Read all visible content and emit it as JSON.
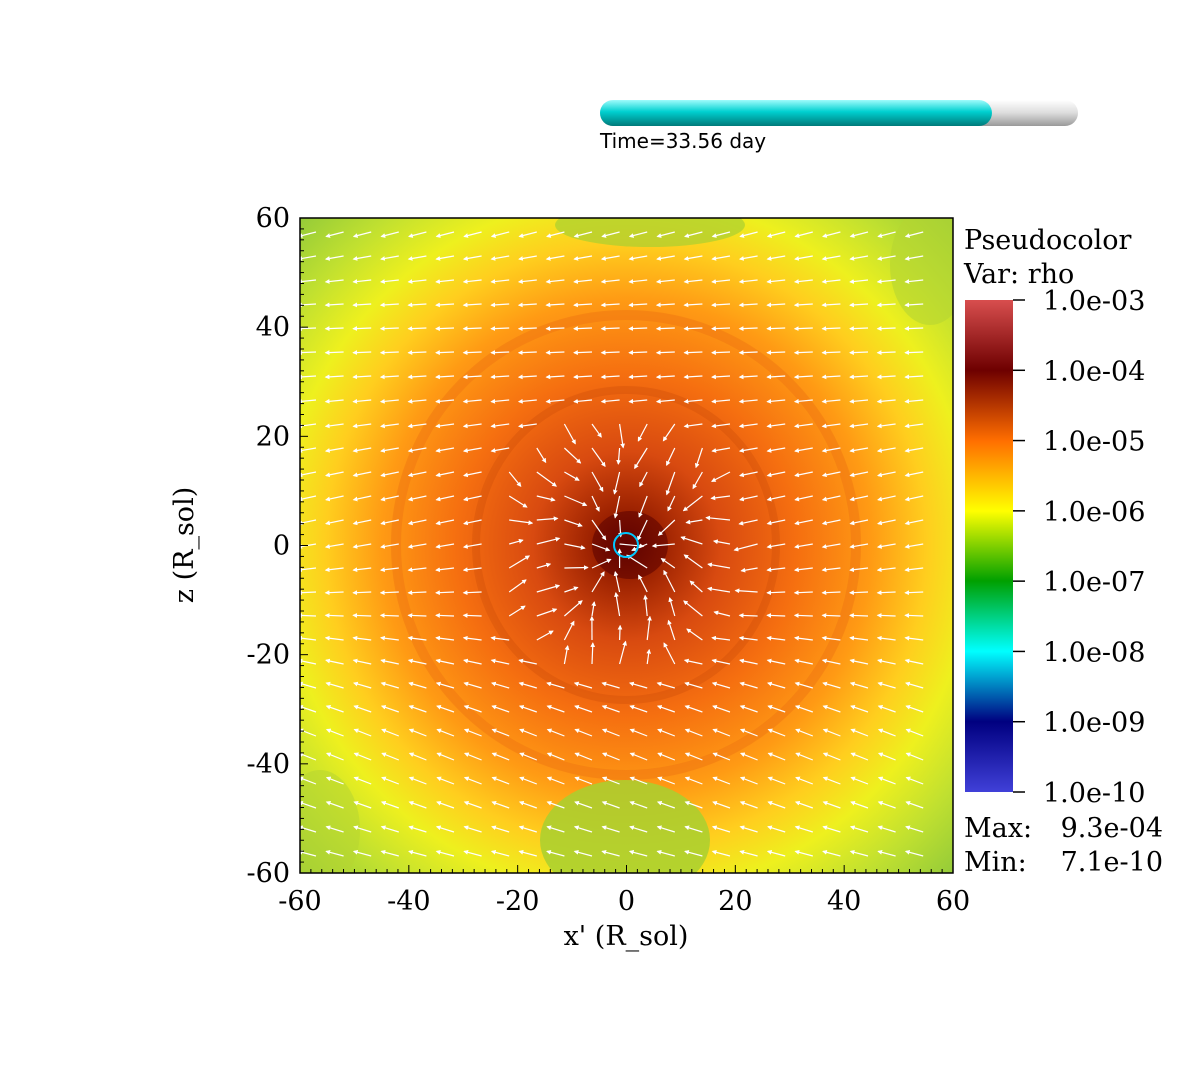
{
  "time_slider": {
    "label": "Time=33.56 day",
    "progress": 0.82,
    "fill_color": "#00c8c8",
    "track_color": "#d8d8d8"
  },
  "legend": {
    "title": "Pseudocolor",
    "var_label": "Var: rho",
    "ticks": [
      "1.0e-03",
      "1.0e-04",
      "1.0e-05",
      "1.0e-06",
      "1.0e-07",
      "1.0e-08",
      "1.0e-09",
      "1.0e-10"
    ],
    "max_label": "Max:",
    "max_value": "9.3e-04",
    "min_label": "Min:",
    "min_value": "7.1e-10",
    "colormap": [
      "#d84e4e",
      "#6e0000",
      "#ff6e00",
      "#ffff00",
      "#00a000",
      "#00ffff",
      "#000080",
      "#4040d8"
    ]
  },
  "chart_data": {
    "type": "heatmap",
    "title": "",
    "xlabel": "x' (R_sol)",
    "ylabel": "z (R_sol)",
    "xlim": [
      -60,
      60
    ],
    "ylim": [
      -60,
      60
    ],
    "xticks": [
      -60,
      -40,
      -20,
      0,
      20,
      40,
      60
    ],
    "yticks": [
      60,
      40,
      20,
      0,
      -20,
      -40,
      -60
    ],
    "scale": "log",
    "colorbar_range": [
      1e-10,
      0.001
    ],
    "data_max": 0.00093,
    "data_min": 7.1e-10,
    "overlay": "velocity vectors (white arrows), mostly pointing in -x direction",
    "marker": {
      "type": "circle",
      "x": 0,
      "y": 0,
      "color": "#00c8ff"
    },
    "density_regions": [
      {
        "region": "core",
        "center": [
          0,
          0
        ],
        "radius": 7,
        "rho": 0.0001
      },
      {
        "region": "inner shell",
        "center": [
          0,
          0
        ],
        "radius": 28,
        "rho": 2e-05
      },
      {
        "region": "outer shell",
        "center": [
          0,
          0
        ],
        "radius": 45,
        "rho": 8e-06
      },
      {
        "region": "envelope",
        "center": [
          0,
          0
        ],
        "radius": 60,
        "rho": 1.5e-06
      },
      {
        "region": "corners",
        "rho": 4e-07
      }
    ]
  }
}
